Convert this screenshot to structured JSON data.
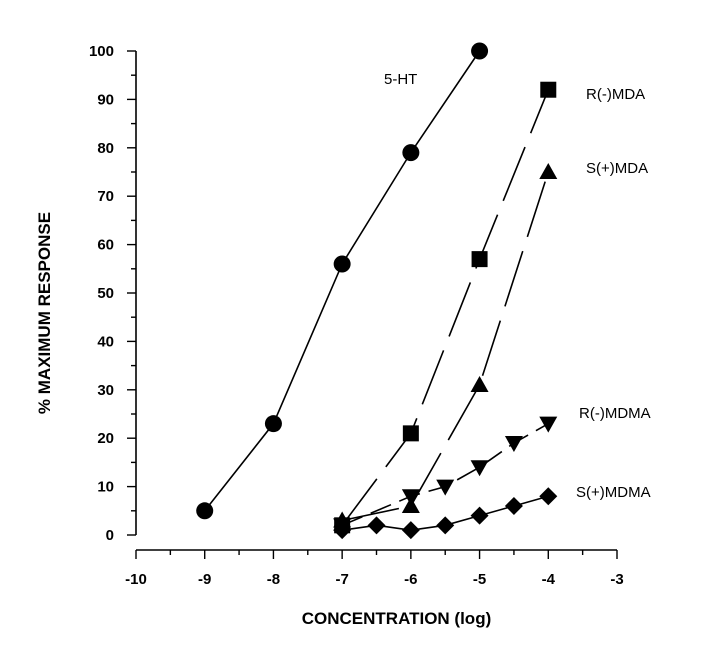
{
  "chart_data": {
    "type": "line",
    "title": "",
    "xlabel": "CONCENTRATION (log)",
    "ylabel": "% MAXIMUM RESPONSE",
    "xlim": [
      -10,
      -3
    ],
    "ylim": [
      0,
      100
    ],
    "xticks": [
      -10,
      -9,
      -8,
      -7,
      -6,
      -5,
      -4,
      -3
    ],
    "yticks": [
      0,
      10,
      20,
      30,
      40,
      50,
      60,
      70,
      80,
      90,
      100
    ],
    "grid": false,
    "legend": "inline labels",
    "series": [
      {
        "name": "5-HT",
        "marker": "circle",
        "dash": "solid",
        "points": [
          [
            -9,
            5
          ],
          [
            -8,
            23
          ],
          [
            -7,
            56
          ],
          [
            -6,
            79
          ],
          [
            -5,
            100
          ]
        ]
      },
      {
        "name": "R(-)MDA",
        "marker": "square",
        "dash": "long-dash",
        "points": [
          [
            -7,
            2
          ],
          [
            -6,
            21
          ],
          [
            -5,
            57
          ],
          [
            -4,
            92
          ]
        ]
      },
      {
        "name": "S(+)MDA",
        "marker": "triangle-up",
        "dash": "long-dash",
        "points": [
          [
            -7,
            3
          ],
          [
            -6,
            6
          ],
          [
            -5,
            31
          ],
          [
            -4,
            75
          ]
        ]
      },
      {
        "name": "R(-)MDMA",
        "marker": "triangle-down",
        "dash": "short-dash",
        "points": [
          [
            -7,
            2
          ],
          [
            -6,
            8
          ],
          [
            -5.5,
            10
          ],
          [
            -5,
            14
          ],
          [
            -4.5,
            19
          ],
          [
            -4,
            23
          ]
        ]
      },
      {
        "name": "S(+)MDMA",
        "marker": "diamond",
        "dash": "solid",
        "points": [
          [
            -7,
            1
          ],
          [
            -6.5,
            2
          ],
          [
            -6,
            1
          ],
          [
            -5.5,
            2
          ],
          [
            -5,
            4
          ],
          [
            -4.5,
            6
          ],
          [
            -4,
            8
          ]
        ]
      }
    ]
  }
}
